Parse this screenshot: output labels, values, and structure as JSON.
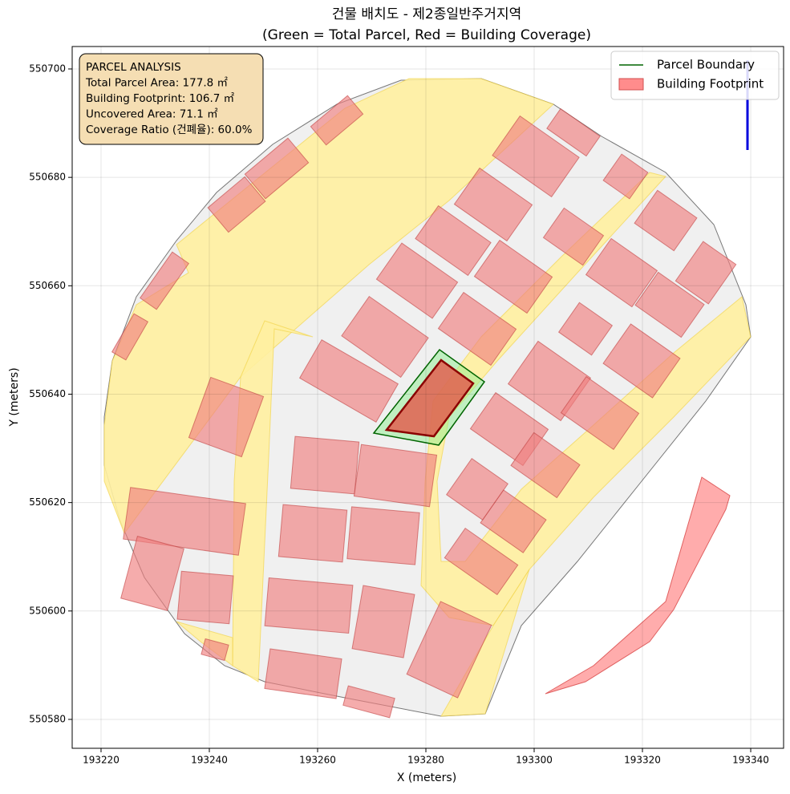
{
  "chart_data": {
    "type": "map",
    "title": "건물 배치도 - 제2종일반주거지역",
    "subtitle": "(Green = Total Parcel, Red = Building Coverage)",
    "xlabel": "X (meters)",
    "ylabel": "Y (meters)",
    "xlim": [
      193214.67,
      193346.07
    ],
    "ylim": [
      550574.67,
      550704.14
    ],
    "xticks": [
      193220,
      193240,
      193260,
      193280,
      193300,
      193320,
      193340
    ],
    "yticks": [
      550580,
      550600,
      550620,
      550640,
      550660,
      550680,
      550700
    ],
    "grid": true,
    "legend_position": "upper right",
    "legend": [
      {
        "name": "Parcel Boundary",
        "color": "#006400"
      },
      {
        "name": "Building Footprint",
        "color": "#ff7f7f"
      }
    ],
    "annotation": [
      "PARCEL ANALYSIS",
      "Total Parcel Area: 177.8 ㎡",
      "Building Footprint: 106.7 ㎡",
      "Uncovered Area: 71.1 ㎡",
      "Coverage Ratio (건폐율): 60.0%"
    ]
  }
}
